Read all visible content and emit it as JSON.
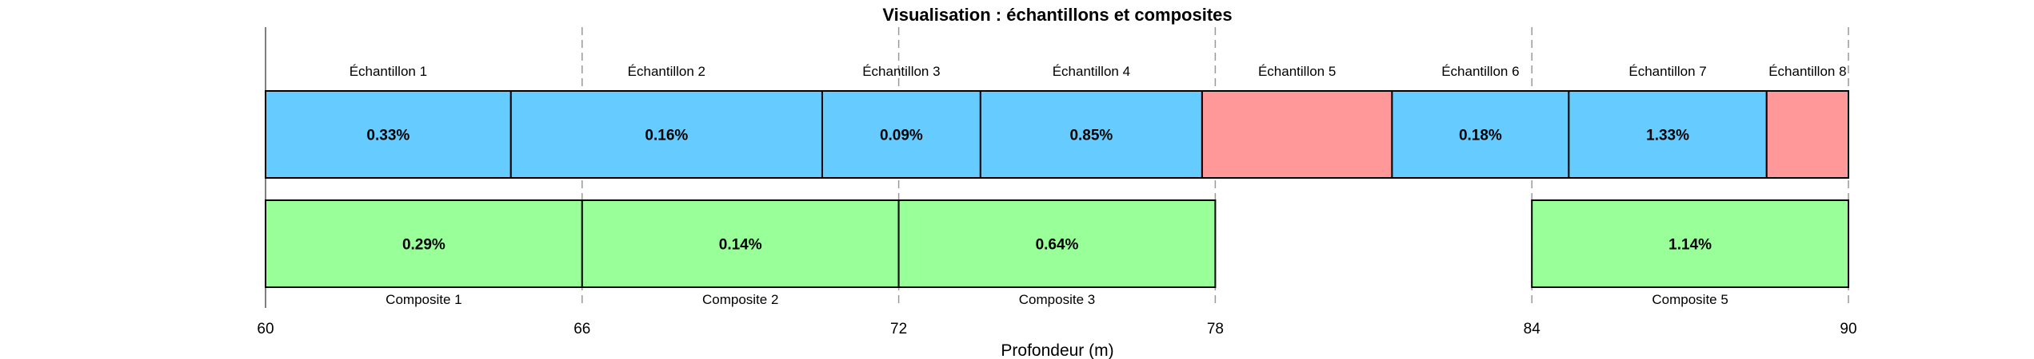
{
  "chart_data": {
    "type": "bar",
    "title": "Visualisation : échantillons et composites",
    "xlabel": "Profondeur (m)",
    "ylabel": "",
    "xlim": [
      60,
      90
    ],
    "xticks": [
      60,
      66,
      72,
      78,
      84,
      90
    ],
    "grid": "dashed vertical lines at x ticks",
    "colors": {
      "sample": "#66ccff",
      "sample_missing": "#ff9999",
      "composite": "#99ff99",
      "border": "#000000",
      "grid": "#999999"
    },
    "samples": [
      {
        "label": "Échantillon 1",
        "from": 60.0,
        "to": 64.65,
        "value": "0.33%",
        "missing": false
      },
      {
        "label": "Échantillon 2",
        "from": 64.65,
        "to": 70.55,
        "value": "0.16%",
        "missing": false
      },
      {
        "label": "Échantillon 3",
        "from": 70.55,
        "to": 73.55,
        "value": "0.09%",
        "missing": false
      },
      {
        "label": "Échantillon 4",
        "from": 73.55,
        "to": 77.75,
        "value": "0.85%",
        "missing": false
      },
      {
        "label": "Échantillon 5",
        "from": 77.75,
        "to": 81.35,
        "value": "",
        "missing": true
      },
      {
        "label": "Échantillon 6",
        "from": 81.35,
        "to": 84.7,
        "value": "0.18%",
        "missing": false
      },
      {
        "label": "Échantillon 7",
        "from": 84.7,
        "to": 88.45,
        "value": "1.33%",
        "missing": false
      },
      {
        "label": "Échantillon 8",
        "from": 88.45,
        "to": 90.0,
        "value": "",
        "missing": true
      }
    ],
    "composites": [
      {
        "label": "Composite 1",
        "from": 60,
        "to": 66,
        "value": "0.29%"
      },
      {
        "label": "Composite 2",
        "from": 66,
        "to": 72,
        "value": "0.14%"
      },
      {
        "label": "Composite 3",
        "from": 72,
        "to": 78,
        "value": "0.64%"
      },
      {
        "label": "Composite 5",
        "from": 84,
        "to": 90,
        "value": "1.14%"
      }
    ]
  }
}
